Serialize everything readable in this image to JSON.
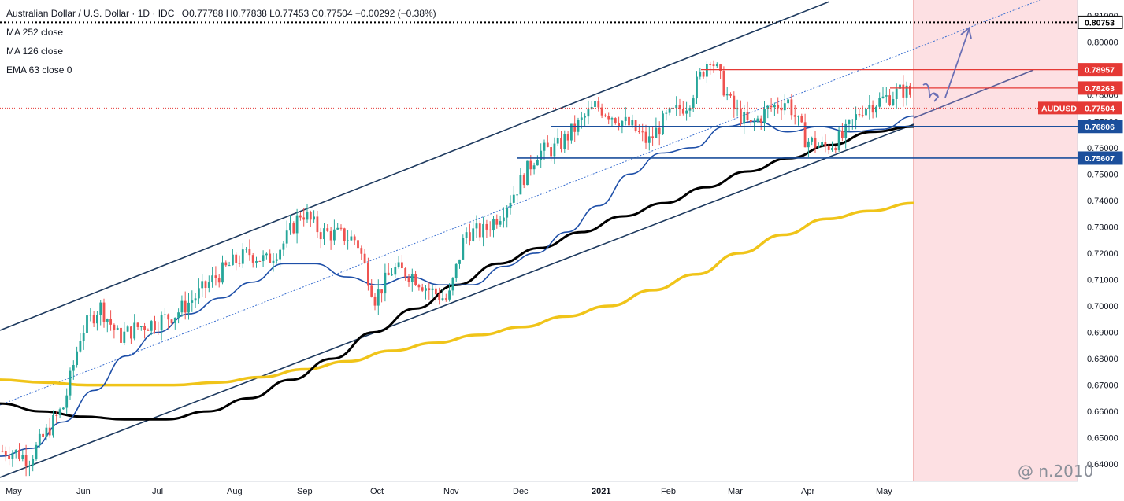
{
  "header": {
    "title": "Australian Dollar / U.S. Dollar · 1D · IDC",
    "ohlc": "O0.77788 H0.77838 L0.77453 C0.77504 −0.00292 (−0.38%)"
  },
  "legend": [
    "MA 252 close",
    "MA 126 close",
    "EMA 63 close 0"
  ],
  "watermark": "@ n.2010",
  "colors": {
    "up": "#26a69a",
    "down": "#ef5350",
    "ma252": "#f0c419",
    "ma126": "#000000",
    "ema63": "#1e4fa8",
    "channel": "#1e3a5f",
    "support": "#1b4f9c",
    "resistance": "#e53935",
    "projection_zone": "#fde0e3",
    "arrows": "#6a6fb5"
  },
  "chart_data": {
    "type": "candlestick",
    "symbol": "AUDUSD",
    "timeframe": "1D",
    "x_ticks": [
      "May",
      "Jun",
      "Jul",
      "Aug",
      "Sep",
      "Oct",
      "Nov",
      "Dec",
      "2021",
      "Feb",
      "Mar",
      "Apr",
      "May"
    ],
    "y_ticks": [
      0.81,
      0.8,
      0.79,
      0.78,
      0.77,
      0.76,
      0.75,
      0.74,
      0.73,
      0.72,
      0.71,
      0.7,
      0.69,
      0.68,
      0.67,
      0.66,
      0.65,
      0.64
    ],
    "y_tick_labels": [
      "0.81000",
      "0.80000",
      "0.79000",
      "0.78000",
      "0.77000",
      "0.76000",
      "0.75000",
      "0.74000",
      "0.73000",
      "0.72000",
      "0.71000",
      "0.70000",
      "0.69000",
      "0.68000",
      "0.67000",
      "0.66000",
      "0.65000",
      "0.64000"
    ],
    "ylim": [
      0.6335,
      0.816
    ],
    "last_price": {
      "label": "AUDUSD",
      "value": "0.77504"
    },
    "price_levels": [
      {
        "value": "0.80753",
        "kind": "target"
      },
      {
        "value": "0.78957",
        "kind": "resistance"
      },
      {
        "value": "0.78263",
        "kind": "resistance"
      },
      {
        "value": "0.76806",
        "kind": "support"
      },
      {
        "value": "0.75607",
        "kind": "support"
      }
    ],
    "close_path": [
      {
        "month": "May",
        "v": 0.645
      },
      {
        "month": "May",
        "v": 0.642
      },
      {
        "month": "May",
        "v": 0.652
      },
      {
        "month": "May",
        "v": 0.662
      },
      {
        "month": "Jun",
        "v": 0.69
      },
      {
        "month": "Jun",
        "v": 0.7
      },
      {
        "month": "Jun",
        "v": 0.688
      },
      {
        "month": "Jun",
        "v": 0.692
      },
      {
        "month": "Jul",
        "v": 0.694
      },
      {
        "month": "Jul",
        "v": 0.697
      },
      {
        "month": "Jul",
        "v": 0.703
      },
      {
        "month": "Jul",
        "v": 0.71
      },
      {
        "month": "Aug",
        "v": 0.716
      },
      {
        "month": "Aug",
        "v": 0.72
      },
      {
        "month": "Aug",
        "v": 0.717
      },
      {
        "month": "Aug",
        "v": 0.724
      },
      {
        "month": "Sep",
        "v": 0.736
      },
      {
        "month": "Sep",
        "v": 0.728
      },
      {
        "month": "Sep",
        "v": 0.727
      },
      {
        "month": "Sep",
        "v": 0.725
      },
      {
        "month": "Oct",
        "v": 0.703
      },
      {
        "month": "Oct",
        "v": 0.714
      },
      {
        "month": "Oct",
        "v": 0.712
      },
      {
        "month": "Oct",
        "v": 0.706
      },
      {
        "month": "Nov",
        "v": 0.702
      },
      {
        "month": "Nov",
        "v": 0.728
      },
      {
        "month": "Nov",
        "v": 0.728
      },
      {
        "month": "Nov",
        "v": 0.735
      },
      {
        "month": "Dec",
        "v": 0.745
      },
      {
        "month": "Dec",
        "v": 0.758
      },
      {
        "month": "Dec",
        "v": 0.76
      },
      {
        "month": "Dec",
        "v": 0.768
      },
      {
        "month": "2021",
        "v": 0.776
      },
      {
        "month": "2021",
        "v": 0.772
      },
      {
        "month": "2021",
        "v": 0.768
      },
      {
        "month": "2021",
        "v": 0.762
      },
      {
        "month": "Feb",
        "v": 0.771
      },
      {
        "month": "Feb",
        "v": 0.777
      },
      {
        "month": "Feb",
        "v": 0.795
      },
      {
        "month": "Mar",
        "v": 0.775
      },
      {
        "month": "Mar",
        "v": 0.768
      },
      {
        "month": "Mar",
        "v": 0.775
      },
      {
        "month": "Mar",
        "v": 0.778
      },
      {
        "month": "Apr",
        "v": 0.763
      },
      {
        "month": "Apr",
        "v": 0.76
      },
      {
        "month": "Apr",
        "v": 0.764
      },
      {
        "month": "Apr",
        "v": 0.775
      },
      {
        "month": "May",
        "v": 0.778
      },
      {
        "month": "May",
        "v": 0.782
      },
      {
        "month": "May",
        "v": 0.775
      }
    ],
    "ma252_path": [
      0.672,
      0.671,
      0.67,
      0.67,
      0.67,
      0.671,
      0.673,
      0.676,
      0.679,
      0.683,
      0.686,
      0.689,
      0.692,
      0.696,
      0.7,
      0.706,
      0.712,
      0.72,
      0.727,
      0.733,
      0.736,
      0.739
    ],
    "ma126_path": [
      0.663,
      0.66,
      0.658,
      0.657,
      0.657,
      0.66,
      0.665,
      0.672,
      0.68,
      0.69,
      0.699,
      0.708,
      0.716,
      0.722,
      0.728,
      0.734,
      0.739,
      0.745,
      0.751,
      0.756,
      0.761,
      0.766,
      0.768
    ],
    "ema63_path": [
      0.643,
      0.646,
      0.656,
      0.668,
      0.681,
      0.69,
      0.697,
      0.703,
      0.709,
      0.716,
      0.716,
      0.711,
      0.708,
      0.711,
      0.708,
      0.708,
      0.715,
      0.72,
      0.728,
      0.738,
      0.75,
      0.758,
      0.76,
      0.768,
      0.77,
      0.766,
      0.768,
      0.766,
      0.767,
      0.772
    ],
    "channel": {
      "upper": [
        {
          "month": "May",
          "v": 0.69
        },
        {
          "month": "Feb",
          "v": 0.802
        },
        {
          "month": "Mar",
          "v": 0.815
        }
      ],
      "lower": [
        {
          "month": "May",
          "v": 0.64
        },
        {
          "month": "May",
          "v": 0.771
        }
      ],
      "midline": [
        {
          "month": "May",
          "v": 0.661
        },
        {
          "month": "May",
          "v": 0.815
        }
      ]
    },
    "grid": false,
    "annotations": [
      "projection zone shaded after last bar",
      "arrows pointing up toward 0.80753"
    ]
  }
}
